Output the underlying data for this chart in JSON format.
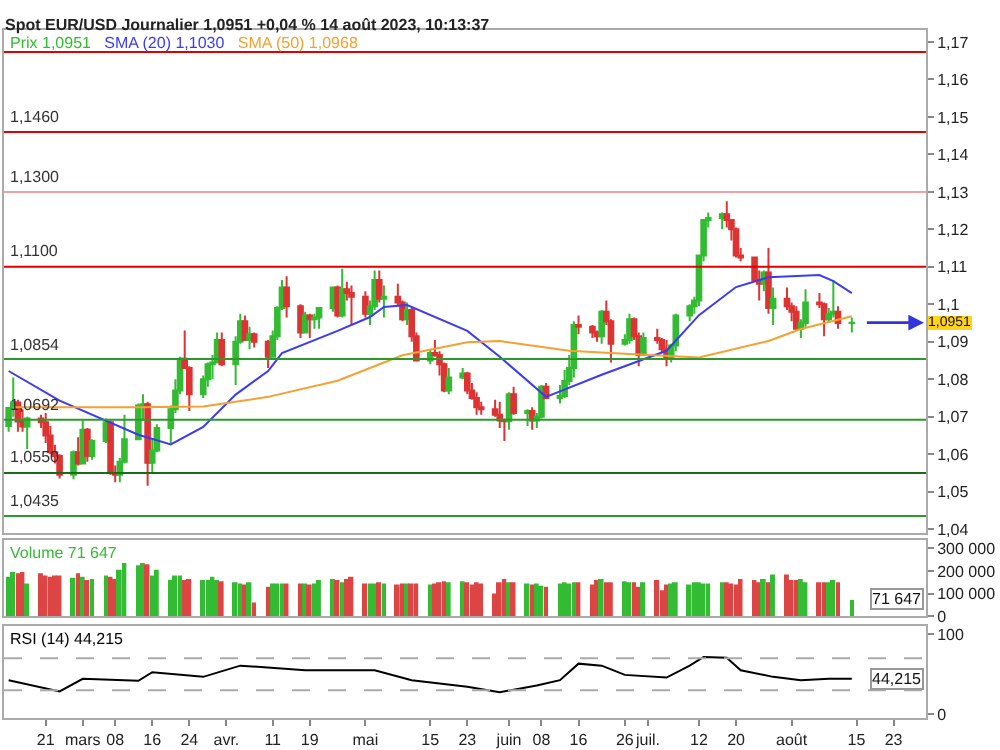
{
  "chart_data": [
    {
      "type": "candlestick",
      "title": "Spot EUR/USD Journalier 1,0951 +0,04 % 14 août 2023, 10:13:37",
      "legend": "top left",
      "tick_labels": "y",
      "x": [
        "2023-02-13",
        "2023-02-14",
        "2023-02-15",
        "2023-02-16",
        "2023-02-17",
        "2023-02-20",
        "2023-02-21",
        "2023-02-22",
        "2023-02-23",
        "2023-02-24",
        "2023-02-27",
        "2023-02-28",
        "2023-03-01",
        "2023-03-02",
        "2023-03-03",
        "2023-03-06",
        "2023-03-07",
        "2023-03-08",
        "2023-03-09",
        "2023-03-10",
        "2023-03-13",
        "2023-03-14",
        "2023-03-15",
        "2023-03-16",
        "2023-03-17",
        "2023-03-20",
        "2023-03-21",
        "2023-03-22",
        "2023-03-23",
        "2023-03-24",
        "2023-03-27",
        "2023-03-28",
        "2023-03-29",
        "2023-03-30",
        "2023-03-31",
        "2023-04-03",
        "2023-04-04",
        "2023-04-05",
        "2023-04-06",
        "2023-04-07",
        "2023-04-10",
        "2023-04-11",
        "2023-04-12",
        "2023-04-13",
        "2023-04-14",
        "2023-04-17",
        "2023-04-18",
        "2023-04-19",
        "2023-04-20",
        "2023-04-21",
        "2023-04-24",
        "2023-04-25",
        "2023-04-26",
        "2023-04-27",
        "2023-04-28",
        "2023-05-01",
        "2023-05-02",
        "2023-05-03",
        "2023-05-04",
        "2023-05-05",
        "2023-05-08",
        "2023-05-09",
        "2023-05-10",
        "2023-05-11",
        "2023-05-12",
        "2023-05-15",
        "2023-05-16",
        "2023-05-17",
        "2023-05-18",
        "2023-05-19",
        "2023-05-22",
        "2023-05-23",
        "2023-05-24",
        "2023-05-25",
        "2023-05-26",
        "2023-05-29",
        "2023-05-30",
        "2023-05-31",
        "2023-06-01",
        "2023-06-02",
        "2023-06-05",
        "2023-06-06",
        "2023-06-07",
        "2023-06-08",
        "2023-06-09",
        "2023-06-12",
        "2023-06-13",
        "2023-06-14",
        "2023-06-15",
        "2023-06-16",
        "2023-06-19",
        "2023-06-20",
        "2023-06-21",
        "2023-06-22",
        "2023-06-23",
        "2023-06-26",
        "2023-06-27",
        "2023-06-28",
        "2023-06-29",
        "2023-06-30",
        "2023-07-03",
        "2023-07-04",
        "2023-07-05",
        "2023-07-06",
        "2023-07-07",
        "2023-07-10",
        "2023-07-11",
        "2023-07-12",
        "2023-07-13",
        "2023-07-14",
        "2023-07-17",
        "2023-07-18",
        "2023-07-19",
        "2023-07-20",
        "2023-07-21",
        "2023-07-24",
        "2023-07-25",
        "2023-07-26",
        "2023-07-27",
        "2023-07-28",
        "2023-07-31",
        "2023-08-01",
        "2023-08-02",
        "2023-08-03",
        "2023-08-04",
        "2023-08-07",
        "2023-08-08",
        "2023-08-09",
        "2023-08-10",
        "2023-08-11",
        "2023-08-14"
      ],
      "xlim": [
        "2023-02-12",
        "2023-08-30"
      ],
      "ylim": [
        1.0391,
        1.1732
      ],
      "yticks": [
        {
          "value": 1.04,
          "label": "1,04"
        },
        {
          "value": 1.05,
          "label": "1,05"
        },
        {
          "value": 1.06,
          "label": "1,06"
        },
        {
          "value": 1.07,
          "label": "1,07"
        },
        {
          "value": 1.08,
          "label": "1,08"
        },
        {
          "value": 1.09,
          "label": "1,09"
        },
        {
          "value": 1.1,
          "label": "1,1"
        },
        {
          "value": 1.11,
          "label": "1,11"
        },
        {
          "value": 1.12,
          "label": "1,12"
        },
        {
          "value": 1.13,
          "label": "1,13"
        },
        {
          "value": 1.14,
          "label": "1,14"
        },
        {
          "value": 1.15,
          "label": "1,15"
        },
        {
          "value": 1.16,
          "label": "1,16"
        },
        {
          "value": 1.17,
          "label": "1,17"
        }
      ],
      "series": [
        {
          "type": "candlestick",
          "name": "Prix 1,0951",
          "ohlc": [
            [
              1.0675,
              1.0725,
              1.066,
              1.0723
            ],
            [
              1.0723,
              1.0805,
              1.07,
              1.0738
            ],
            [
              1.0738,
              1.0745,
              1.066,
              1.0687
            ],
            [
              1.0687,
              1.072,
              1.066,
              1.0674
            ],
            [
              1.0674,
              1.07,
              1.0613,
              1.0695
            ],
            [
              1.0695,
              1.0705,
              1.067,
              1.0685
            ],
            [
              1.0685,
              1.071,
              1.063,
              1.065
            ],
            [
              1.065,
              1.0675,
              1.06,
              1.0605
            ],
            [
              1.0605,
              1.0625,
              1.0575,
              1.0595
            ],
            [
              1.0595,
              1.06,
              1.0535,
              1.0545
            ],
            [
              1.0545,
              1.061,
              1.0533,
              1.0605
            ],
            [
              1.0605,
              1.0645,
              1.057,
              1.0575
            ],
            [
              1.0575,
              1.069,
              1.0575,
              1.0665
            ],
            [
              1.0665,
              1.067,
              1.058,
              1.0595
            ],
            [
              1.0595,
              1.064,
              1.0585,
              1.0635
            ],
            [
              1.0635,
              1.0695,
              1.063,
              1.0685
            ],
            [
              1.0685,
              1.069,
              1.0545,
              1.055
            ],
            [
              1.055,
              1.057,
              1.0525,
              1.0545
            ],
            [
              1.0545,
              1.059,
              1.0525,
              1.058
            ],
            [
              1.058,
              1.0705,
              1.0575,
              1.064
            ],
            [
              1.064,
              1.0735,
              1.064,
              1.073
            ],
            [
              1.073,
              1.076,
              1.069,
              1.0733
            ],
            [
              1.0733,
              1.074,
              1.0516,
              1.0577
            ],
            [
              1.0577,
              1.064,
              1.055,
              1.061
            ],
            [
              1.061,
              1.068,
              1.0605,
              1.067
            ],
            [
              1.067,
              1.073,
              1.063,
              1.072
            ],
            [
              1.072,
              1.08,
              1.071,
              1.077
            ],
            [
              1.077,
              1.086,
              1.076,
              1.0855
            ],
            [
              1.0855,
              1.093,
              1.083,
              1.083
            ],
            [
              1.083,
              1.0835,
              1.0715,
              1.076
            ],
            [
              1.076,
              1.081,
              1.075,
              1.08
            ],
            [
              1.08,
              1.0845,
              1.078,
              1.084
            ],
            [
              1.084,
              1.0865,
              1.08,
              1.0845
            ],
            [
              1.0845,
              1.0925,
              1.0845,
              1.0905
            ],
            [
              1.0905,
              1.0925,
              1.0835,
              1.084
            ],
            [
              1.084,
              1.0915,
              1.0785,
              1.09
            ],
            [
              1.09,
              1.0975,
              1.0895,
              1.0955
            ],
            [
              1.0955,
              1.097,
              1.0905,
              1.0905
            ],
            [
              1.0905,
              1.094,
              1.088,
              1.092
            ],
            [
              1.092,
              1.0925,
              1.0885,
              1.09
            ],
            [
              1.09,
              1.0905,
              1.083,
              1.086
            ],
            [
              1.086,
              1.093,
              1.086,
              1.0915
            ],
            [
              1.0915,
              1.0995,
              1.0905,
              1.099
            ],
            [
              1.099,
              1.1065,
              1.0985,
              1.1045
            ],
            [
              1.1045,
              1.1075,
              1.0965,
              1.0995
            ],
            [
              1.0995,
              1.1,
              1.091,
              1.0925
            ],
            [
              1.0925,
              1.098,
              1.0925,
              1.097
            ],
            [
              1.097,
              1.0975,
              1.091,
              1.096
            ],
            [
              1.096,
              1.0975,
              1.0935,
              1.0965
            ],
            [
              1.0965,
              1.099,
              1.0935,
              1.099
            ],
            [
              1.099,
              1.1045,
              1.098,
              1.1045
            ],
            [
              1.1045,
              1.105,
              1.0965,
              1.097
            ],
            [
              1.097,
              1.1095,
              1.0965,
              1.104
            ],
            [
              1.104,
              1.106,
              1.101,
              1.103
            ],
            [
              1.103,
              1.105,
              1.0945,
              1.102
            ],
            [
              1.102,
              1.1035,
              1.0965,
              1.0975
            ],
            [
              1.0975,
              1.101,
              1.0945,
              1.0995
            ],
            [
              1.0995,
              1.109,
              1.0985,
              1.1065
            ],
            [
              1.1065,
              1.109,
              1.1005,
              1.1015
            ],
            [
              1.1015,
              1.105,
              1.0965,
              1.102
            ],
            [
              1.102,
              1.1055,
              1.0995,
              1.1005
            ],
            [
              1.1005,
              1.101,
              1.0955,
              1.096
            ],
            [
              1.096,
              1.1005,
              1.0945,
              1.0985
            ],
            [
              1.0985,
              1.099,
              1.09,
              1.0915
            ],
            [
              1.0915,
              1.0925,
              1.085,
              1.085
            ],
            [
              1.085,
              1.088,
              1.084,
              1.087
            ],
            [
              1.087,
              1.0905,
              1.086,
              1.0865
            ],
            [
              1.0865,
              1.0875,
              1.081,
              1.084
            ],
            [
              1.084,
              1.0845,
              1.0765,
              1.077
            ],
            [
              1.077,
              1.083,
              1.076,
              1.0805
            ],
            [
              1.0805,
              1.083,
              1.08,
              1.0815
            ],
            [
              1.0815,
              1.082,
              1.076,
              1.077
            ],
            [
              1.077,
              1.079,
              1.0745,
              1.075
            ],
            [
              1.075,
              1.0765,
              1.0705,
              1.0725
            ],
            [
              1.0725,
              1.074,
              1.0705,
              1.072
            ],
            [
              1.072,
              1.0745,
              1.07,
              1.0705
            ],
            [
              1.0705,
              1.074,
              1.067,
              1.069
            ],
            [
              1.069,
              1.0695,
              1.0635,
              1.0688
            ],
            [
              1.0688,
              1.0765,
              1.0665,
              1.076
            ],
            [
              1.076,
              1.078,
              1.0705,
              1.071
            ],
            [
              1.071,
              1.072,
              1.0675,
              1.0715
            ],
            [
              1.0715,
              1.0725,
              1.0665,
              1.069
            ],
            [
              1.069,
              1.071,
              1.067,
              1.07
            ],
            [
              1.07,
              1.0785,
              1.0695,
              1.078
            ],
            [
              1.078,
              1.079,
              1.075,
              1.075
            ],
            [
              1.075,
              1.0785,
              1.0735,
              1.0755
            ],
            [
              1.0755,
              1.0825,
              1.075,
              1.0795
            ],
            [
              1.0795,
              1.0865,
              1.0785,
              1.083
            ],
            [
              1.083,
              1.0955,
              1.0805,
              1.0945
            ],
            [
              1.0945,
              1.097,
              1.092,
              1.094
            ],
            [
              1.094,
              1.0945,
              1.091,
              1.0925
            ],
            [
              1.0925,
              1.093,
              1.09,
              1.0915
            ],
            [
              1.0915,
              1.0985,
              1.0895,
              1.098
            ],
            [
              1.098,
              1.101,
              1.0945,
              1.0955
            ],
            [
              1.0955,
              1.096,
              1.0845,
              1.0895
            ],
            [
              1.0895,
              1.092,
              1.089,
              1.0905
            ],
            [
              1.0905,
              1.0975,
              1.0895,
              1.096
            ],
            [
              1.096,
              1.0965,
              1.0905,
              1.0915
            ],
            [
              1.0915,
              1.0925,
              1.0835,
              1.0865
            ],
            [
              1.0865,
              1.0925,
              1.0865,
              1.091
            ],
            [
              1.091,
              1.0935,
              1.0895,
              1.0905
            ],
            [
              1.0905,
              1.091,
              1.087,
              1.088
            ],
            [
              1.088,
              1.0905,
              1.0835,
              1.0855
            ],
            [
              1.0855,
              1.0895,
              1.0845,
              1.089
            ],
            [
              1.089,
              1.0975,
              1.0875,
              1.097
            ],
            [
              1.097,
              1.1,
              1.0955,
              1.0995
            ],
            [
              1.0995,
              1.102,
              1.0975,
              1.101
            ],
            [
              1.101,
              1.113,
              1.0995,
              1.113
            ],
            [
              1.113,
              1.1225,
              1.1115,
              1.1225
            ],
            [
              1.1225,
              1.1245,
              1.1205,
              1.123
            ],
            [
              1.123,
              1.1245,
              1.12,
              1.124
            ],
            [
              1.124,
              1.1275,
              1.1205,
              1.1225
            ],
            [
              1.1225,
              1.1225,
              1.117,
              1.12
            ],
            [
              1.12,
              1.1205,
              1.1125,
              1.113
            ],
            [
              1.113,
              1.115,
              1.1115,
              1.1125
            ],
            [
              1.1125,
              1.1125,
              1.106,
              1.1065
            ],
            [
              1.1065,
              1.109,
              1.101,
              1.1055
            ],
            [
              1.1055,
              1.109,
              1.1035,
              1.1085
            ],
            [
              1.1085,
              1.115,
              1.0975,
              1.099
            ],
            [
              1.099,
              1.1045,
              1.0945,
              1.1015
            ],
            [
              1.1015,
              1.1045,
              1.0985,
              1.0995
            ],
            [
              1.0995,
              1.1005,
              1.0955,
              1.098
            ],
            [
              1.098,
              1.0995,
              1.0935,
              1.0935
            ],
            [
              1.0935,
              1.096,
              1.091,
              1.095
            ],
            [
              1.095,
              1.104,
              1.094,
              1.1005
            ],
            [
              1.1005,
              1.103,
              1.099,
              1.1
            ],
            [
              1.1,
              1.1005,
              1.0915,
              1.096
            ],
            [
              1.096,
              1.099,
              1.095,
              1.0975
            ],
            [
              1.0975,
              1.1065,
              1.0965,
              1.098
            ],
            [
              1.098,
              1.0995,
              1.0935,
              1.095
            ],
            [
              1.095,
              1.0965,
              1.0925,
              1.0951
            ]
          ]
        },
        {
          "type": "line",
          "name": "SMA (20) 1,1030",
          "color": "#3b3bf5",
          "x": [
            "2023-02-13",
            "2023-02-24",
            "2023-03-13",
            "2023-03-20",
            "2023-03-27",
            "2023-04-03",
            "2023-04-10",
            "2023-04-13",
            "2023-04-25",
            "2023-05-02",
            "2023-05-05",
            "2023-05-10",
            "2023-05-23",
            "2023-05-30",
            "2023-06-09",
            "2023-06-21",
            "2023-07-05",
            "2023-07-12",
            "2023-07-20",
            "2023-07-27",
            "2023-08-07",
            "2023-08-10",
            "2023-08-14"
          ],
          "values": [
            1.0822,
            1.0743,
            1.0652,
            1.0626,
            1.0673,
            1.0759,
            1.0822,
            1.087,
            1.0929,
            1.0966,
            1.0993,
            1.0998,
            1.0929,
            1.086,
            1.0753,
            1.0812,
            1.0876,
            1.0971,
            1.1046,
            1.1072,
            1.1078,
            1.1062,
            1.103
          ]
        },
        {
          "type": "line",
          "name": "SMA (50) 1,0968",
          "color": "#f5a030",
          "x": [
            "2023-02-14",
            "2023-03-13",
            "2023-03-27",
            "2023-04-10",
            "2023-04-25",
            "2023-05-09",
            "2023-05-23",
            "2023-05-30",
            "2023-06-14",
            "2023-06-28",
            "2023-07-12",
            "2023-07-27",
            "2023-08-03",
            "2023-08-14"
          ],
          "values": [
            1.0725,
            1.0725,
            1.0727,
            1.0753,
            1.0796,
            1.0864,
            1.0899,
            1.0902,
            1.0876,
            1.0867,
            1.0858,
            1.0902,
            1.0934,
            1.0968
          ]
        }
      ],
      "ref_lines": [
        {
          "axis": "y",
          "value": 1.1673,
          "color": "#e00000"
        },
        {
          "axis": "y",
          "value": 1.146,
          "label": "1,1460",
          "color": "#e00000"
        },
        {
          "axis": "y",
          "value": 1.13,
          "label": "1,1300",
          "color": "#f4a0a0"
        },
        {
          "axis": "y",
          "value": 1.11,
          "label": "1,1100",
          "color": "#e00000"
        },
        {
          "axis": "y",
          "value": 1.0854,
          "label": "1,0854",
          "color": "#2a9a2a"
        },
        {
          "axis": "y",
          "value": 1.0692,
          "label": "1,0692",
          "color": "#2a9a2a"
        },
        {
          "axis": "y",
          "value": 1.055,
          "label": "1,0550",
          "color": "#1a6a1a"
        },
        {
          "axis": "y",
          "value": 1.0435,
          "label": "1,0435",
          "color": "#2a9a2a"
        }
      ],
      "annotations": [
        {
          "text": "1,0951",
          "x": "2023-08-14",
          "y": 1.0951
        }
      ]
    },
    {
      "type": "bar",
      "legend": "top left",
      "tick_labels": "y",
      "x": [
        "2023-02-13",
        "2023-02-14",
        "2023-02-15",
        "2023-02-16",
        "2023-02-17",
        "2023-02-20",
        "2023-02-21",
        "2023-02-22",
        "2023-02-23",
        "2023-02-24",
        "2023-02-27",
        "2023-02-28",
        "2023-03-01",
        "2023-03-02",
        "2023-03-03",
        "2023-03-06",
        "2023-03-07",
        "2023-03-08",
        "2023-03-09",
        "2023-03-10",
        "2023-03-13",
        "2023-03-14",
        "2023-03-15",
        "2023-03-16",
        "2023-03-17",
        "2023-03-20",
        "2023-03-21",
        "2023-03-22",
        "2023-03-23",
        "2023-03-24",
        "2023-03-27",
        "2023-03-28",
        "2023-03-29",
        "2023-03-30",
        "2023-03-31",
        "2023-04-03",
        "2023-04-04",
        "2023-04-05",
        "2023-04-06",
        "2023-04-07",
        "2023-04-10",
        "2023-04-11",
        "2023-04-12",
        "2023-04-13",
        "2023-04-14",
        "2023-04-17",
        "2023-04-18",
        "2023-04-19",
        "2023-04-20",
        "2023-04-21",
        "2023-04-24",
        "2023-04-25",
        "2023-04-26",
        "2023-04-27",
        "2023-04-28",
        "2023-05-01",
        "2023-05-02",
        "2023-05-03",
        "2023-05-04",
        "2023-05-05",
        "2023-05-08",
        "2023-05-09",
        "2023-05-10",
        "2023-05-11",
        "2023-05-12",
        "2023-05-15",
        "2023-05-16",
        "2023-05-17",
        "2023-05-18",
        "2023-05-19",
        "2023-05-22",
        "2023-05-23",
        "2023-05-24",
        "2023-05-25",
        "2023-05-26",
        "2023-05-29",
        "2023-05-30",
        "2023-05-31",
        "2023-06-01",
        "2023-06-02",
        "2023-06-05",
        "2023-06-06",
        "2023-06-07",
        "2023-06-08",
        "2023-06-09",
        "2023-06-12",
        "2023-06-13",
        "2023-06-14",
        "2023-06-15",
        "2023-06-16",
        "2023-06-19",
        "2023-06-20",
        "2023-06-21",
        "2023-06-22",
        "2023-06-23",
        "2023-06-26",
        "2023-06-27",
        "2023-06-28",
        "2023-06-29",
        "2023-06-30",
        "2023-07-03",
        "2023-07-04",
        "2023-07-05",
        "2023-07-06",
        "2023-07-07",
        "2023-07-10",
        "2023-07-11",
        "2023-07-12",
        "2023-07-13",
        "2023-07-14",
        "2023-07-17",
        "2023-07-18",
        "2023-07-19",
        "2023-07-20",
        "2023-07-21",
        "2023-07-24",
        "2023-07-25",
        "2023-07-26",
        "2023-07-27",
        "2023-07-28",
        "2023-07-31",
        "2023-08-01",
        "2023-08-02",
        "2023-08-03",
        "2023-08-04",
        "2023-08-07",
        "2023-08-08",
        "2023-08-09",
        "2023-08-10",
        "2023-08-11",
        "2023-08-14"
      ],
      "xlim": [
        "2023-02-12",
        "2023-08-30"
      ],
      "ylim": [
        0,
        335000
      ],
      "yticks": [
        0,
        {
          "value": 100000,
          "label": "100 000"
        },
        {
          "value": 200000,
          "label": "200 000"
        },
        {
          "value": 300000,
          "label": "300 000"
        }
      ],
      "series": [
        {
          "name": "Volume 71 647",
          "values": [
            175000,
            195000,
            190000,
            195000,
            145000,
            190000,
            180000,
            175000,
            180000,
            180000,
            170000,
            190000,
            175000,
            160000,
            165000,
            180000,
            175000,
            165000,
            205000,
            235000,
            225000,
            235000,
            230000,
            180000,
            205000,
            160000,
            180000,
            180000,
            160000,
            165000,
            160000,
            160000,
            175000,
            160000,
            155000,
            150000,
            145000,
            140000,
            150000,
            60000,
            130000,
            145000,
            145000,
            145000,
            145000,
            145000,
            145000,
            140000,
            145000,
            160000,
            165000,
            160000,
            150000,
            165000,
            175000,
            145000,
            145000,
            145000,
            150000,
            145000,
            140000,
            145000,
            145000,
            145000,
            145000,
            140000,
            145000,
            150000,
            155000,
            150000,
            155000,
            150000,
            140000,
            150000,
            145000,
            100000,
            150000,
            165000,
            150000,
            150000,
            145000,
            140000,
            145000,
            135000,
            130000,
            145000,
            150000,
            145000,
            150000,
            150000,
            140000,
            160000,
            165000,
            150000,
            150000,
            155000,
            150000,
            150000,
            130000,
            150000,
            160000,
            115000,
            140000,
            145000,
            150000,
            140000,
            150000,
            150000,
            145000,
            145000,
            150000,
            150000,
            145000,
            140000,
            165000,
            160000,
            150000,
            165000,
            150000,
            185000,
            185000,
            160000,
            160000,
            165000,
            150000,
            150000,
            150000,
            150000,
            160000,
            150000,
            71647
          ],
          "colors": [
            "#33bb33",
            "#33bb33",
            "#dd4444",
            "#dd4444",
            "#33bb33",
            "#dd4444",
            "#dd4444",
            "#dd4444",
            "#dd4444",
            "#dd4444",
            "#33bb33",
            "#dd4444",
            "#33bb33",
            "#dd4444",
            "#33bb33",
            "#33bb33",
            "#dd4444",
            "#dd4444",
            "#33bb33",
            "#33bb33",
            "#33bb33",
            "#33bb33",
            "#dd4444",
            "#33bb33",
            "#33bb33",
            "#33bb33",
            "#33bb33",
            "#33bb33",
            "#dd4444",
            "#dd4444",
            "#33bb33",
            "#33bb33",
            "#33bb33",
            "#33bb33",
            "#dd4444",
            "#33bb33",
            "#33bb33",
            "#dd4444",
            "#33bb33",
            "#dd4444",
            "#dd4444",
            "#33bb33",
            "#33bb33",
            "#33bb33",
            "#dd4444",
            "#dd4444",
            "#33bb33",
            "#dd4444",
            "#33bb33",
            "#33bb33",
            "#33bb33",
            "#dd4444",
            "#33bb33",
            "#dd4444",
            "#dd4444",
            "#dd4444",
            "#33bb33",
            "#33bb33",
            "#dd4444",
            "#33bb33",
            "#dd4444",
            "#dd4444",
            "#33bb33",
            "#dd4444",
            "#dd4444",
            "#33bb33",
            "#dd4444",
            "#dd4444",
            "#dd4444",
            "#33bb33",
            "#33bb33",
            "#dd4444",
            "#dd4444",
            "#dd4444",
            "#dd4444",
            "#dd4444",
            "#dd4444",
            "#dd4444",
            "#33bb33",
            "#dd4444",
            "#33bb33",
            "#dd4444",
            "#33bb33",
            "#33bb33",
            "#dd4444",
            "#33bb33",
            "#33bb33",
            "#33bb33",
            "#33bb33",
            "#dd4444",
            "#dd4444",
            "#dd4444",
            "#33bb33",
            "#dd4444",
            "#dd4444",
            "#33bb33",
            "#33bb33",
            "#dd4444",
            "#dd4444",
            "#33bb33",
            "#dd4444",
            "#dd4444",
            "#dd4444",
            "#33bb33",
            "#33bb33",
            "#33bb33",
            "#33bb33",
            "#33bb33",
            "#33bb33",
            "#33bb33",
            "#33bb33",
            "#dd4444",
            "#dd4444",
            "#dd4444",
            "#dd4444",
            "#dd4444",
            "#dd4444",
            "#33bb33",
            "#dd4444",
            "#33bb33",
            "#dd4444",
            "#dd4444",
            "#dd4444",
            "#33bb33",
            "#33bb33",
            "#dd4444",
            "#dd4444",
            "#33bb33",
            "#33bb33",
            "#dd4444",
            "#33bb33"
          ]
        }
      ],
      "annotations": [
        {
          "text": "71 647",
          "y": 71647
        }
      ]
    },
    {
      "type": "line",
      "legend": "top left",
      "xlim": [
        "2023-02-12",
        "2023-08-30"
      ],
      "xticks": [
        {
          "value": "2023-02-21",
          "label": "21"
        },
        {
          "value": "2023-03-01",
          "label": "mars"
        },
        {
          "value": "2023-03-08",
          "label": "08"
        },
        {
          "value": "2023-03-16",
          "label": "16"
        },
        {
          "value": "2023-03-24",
          "label": "24"
        },
        {
          "value": "2023-04-01",
          "label": "avr."
        },
        {
          "value": "2023-04-11",
          "label": "11"
        },
        {
          "value": "2023-04-19",
          "label": "19"
        },
        {
          "value": "2023-05-01",
          "label": "mai"
        },
        {
          "value": "2023-05-15",
          "label": "15"
        },
        {
          "value": "2023-05-23",
          "label": "23"
        },
        {
          "value": "2023-06-01",
          "label": "juin"
        },
        {
          "value": "2023-06-08",
          "label": "08"
        },
        {
          "value": "2023-06-16",
          "label": "16"
        },
        {
          "value": "2023-06-26",
          "label": "26"
        },
        {
          "value": "2023-07-01",
          "label": "juil."
        },
        {
          "value": "2023-07-12",
          "label": "12"
        },
        {
          "value": "2023-07-20",
          "label": "20"
        },
        {
          "value": "2023-08-01",
          "label": "août"
        },
        {
          "value": "2023-08-15",
          "label": "15"
        },
        {
          "value": "2023-08-23",
          "label": "23"
        }
      ],
      "ylim": [
        -5,
        110
      ],
      "yticks": [
        0,
        100
      ],
      "series": [
        {
          "name": "RSI (14) 44,215",
          "color": "#000000",
          "x": [
            "2023-02-13",
            "2023-02-24",
            "2023-03-01",
            "2023-03-13",
            "2023-03-16",
            "2023-03-27",
            "2023-04-04",
            "2023-04-18",
            "2023-05-03",
            "2023-05-11",
            "2023-05-23",
            "2023-05-30",
            "2023-06-07",
            "2023-06-12",
            "2023-06-16",
            "2023-06-21",
            "2023-06-26",
            "2023-07-05",
            "2023-07-10",
            "2023-07-13",
            "2023-07-18",
            "2023-07-21",
            "2023-07-28",
            "2023-08-03",
            "2023-08-09",
            "2023-08-14"
          ],
          "values": [
            42.5,
            28.3,
            44.2,
            41.7,
            52.5,
            46.7,
            60.8,
            55,
            55,
            42.5,
            34.2,
            27.5,
            35.8,
            42.5,
            63.3,
            60.8,
            49.2,
            45.8,
            60.8,
            71.7,
            70.8,
            55,
            46.7,
            42.5,
            44.2,
            44.215
          ]
        }
      ],
      "ref_lines": [
        {
          "axis": "y",
          "value": 70,
          "color": "#aaaaaa",
          "line_style": "dashed"
        },
        {
          "axis": "y",
          "value": 30,
          "color": "#aaaaaa",
          "line_style": "dashed"
        }
      ],
      "annotations": [
        {
          "text": "44,215",
          "y": 44.215
        }
      ]
    }
  ]
}
